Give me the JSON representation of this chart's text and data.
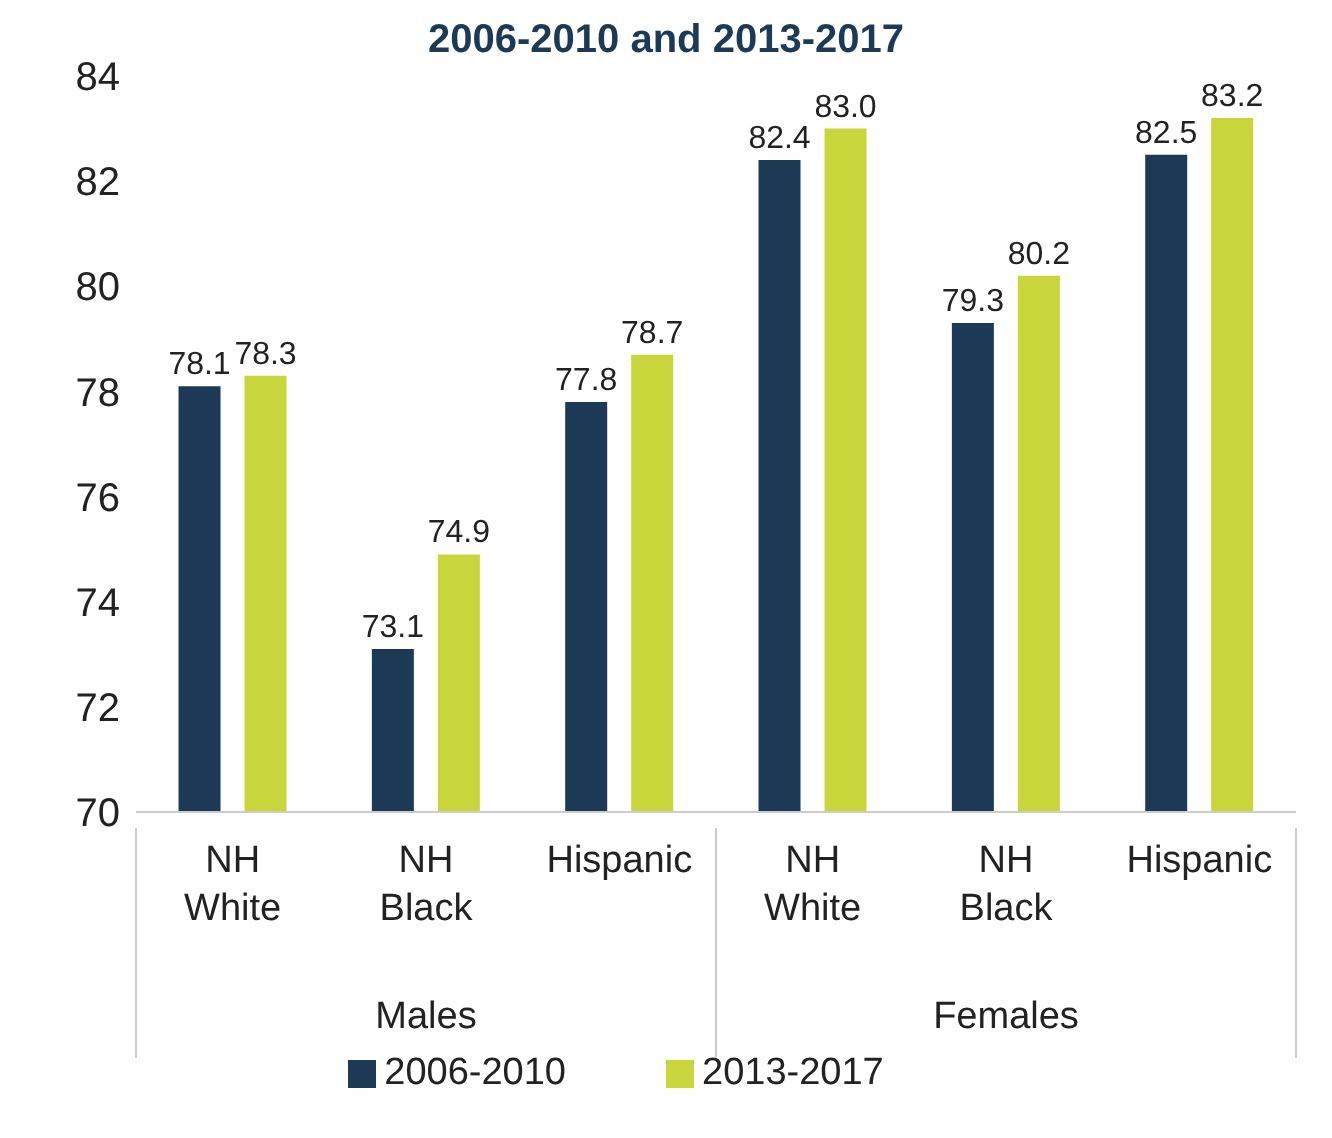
{
  "chart_data": {
    "type": "bar",
    "title": "2006-2010 and 2013-2017",
    "categories": [
      "NH White",
      "NH Black",
      "Hispanic",
      "NH White",
      "NH Black",
      "Hispanic"
    ],
    "series": [
      {
        "name": "2006-2010",
        "color": "#1c3a56",
        "values": [
          78.1,
          73.1,
          77.8,
          82.4,
          79.3,
          82.5
        ],
        "value_labels": [
          "78.1",
          "73.1",
          "77.8",
          "82.4",
          "79.3",
          "82.5"
        ]
      },
      {
        "name": "2013-2017",
        "color": "#c8d63c",
        "values": [
          78.3,
          74.9,
          78.7,
          83.0,
          80.2,
          83.2
        ],
        "value_labels": [
          "78.3",
          "74.9",
          "78.7",
          "83.0",
          "80.2",
          "83.2"
        ]
      }
    ],
    "annotations": [
      "Males",
      "Females"
    ],
    "ylim": [
      70,
      84
    ],
    "yticks": [
      70,
      72,
      74,
      76,
      78,
      80,
      82,
      84
    ],
    "legend": "bottom"
  }
}
